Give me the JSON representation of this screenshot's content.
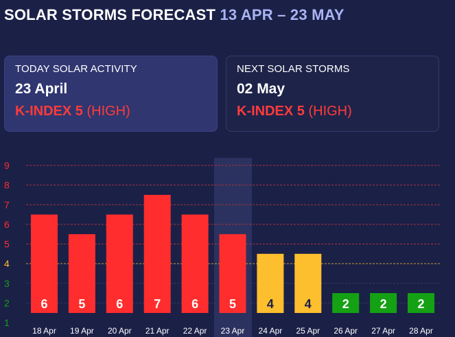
{
  "header": {
    "title": "SOLAR STORMS FORECAST",
    "range": "13 APR – 23 MAY"
  },
  "today_card": {
    "label": "TODAY SOLAR ACTIVITY",
    "date": "23 April",
    "kindex": "K-INDEX 5",
    "level": "(HIGH)"
  },
  "next_card": {
    "label": "NEXT SOLAR STORMS",
    "date": "02 May",
    "kindex": "K-INDEX 5",
    "level": "(HIGH)"
  },
  "colors": {
    "high": "#ff2d2d",
    "moderate": "#fdbf2d",
    "low": "#14a114",
    "highlight": "#2e3462",
    "gridline_high": "#a8323f",
    "gridline_mid": "#c9a33a",
    "gridline_low": "#2f3d66"
  },
  "chart_data": {
    "type": "bar",
    "categories": [
      "18 Apr",
      "19 Apr",
      "20 Apr",
      "21 Apr",
      "22 Apr",
      "23 Apr",
      "24 Apr",
      "25 Apr",
      "26 Apr",
      "27 Apr",
      "28 Apr"
    ],
    "values": [
      6,
      5,
      6,
      7,
      6,
      5,
      4,
      4,
      2,
      2,
      2
    ],
    "data_labels": [
      "6",
      "5",
      "6",
      "7",
      "6",
      "5",
      "4",
      "4",
      "2",
      "2",
      "2"
    ],
    "highlighted_category": "23 Apr",
    "yticks": [
      "1",
      "2",
      "3",
      "4",
      "5",
      "6",
      "7",
      "8",
      "9"
    ],
    "ylim": [
      1,
      9
    ],
    "grid": true,
    "title": "",
    "xlabel": "",
    "ylabel": ""
  }
}
